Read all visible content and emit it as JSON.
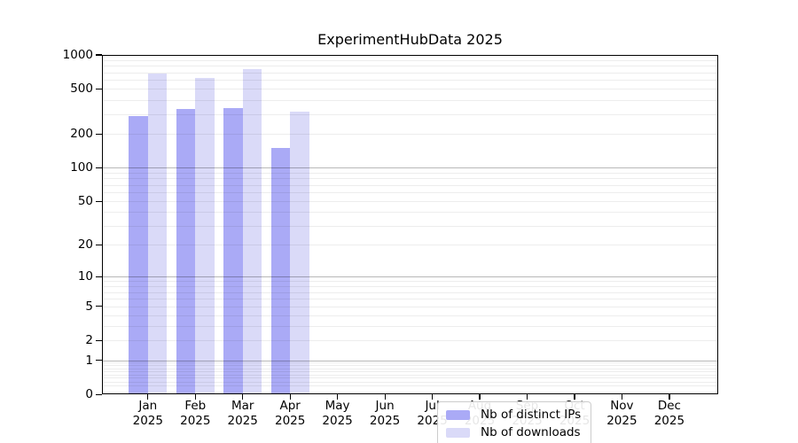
{
  "chart_data": {
    "type": "bar",
    "title": "ExperimentHubData 2025",
    "categories": [
      "Jan",
      "Feb",
      "Mar",
      "Apr",
      "May",
      "Jun",
      "Jul",
      "Aug",
      "Sep",
      "Oct",
      "Nov",
      "Dec"
    ],
    "year_label": "2025",
    "series": [
      {
        "name": "Nb of distinct IPs",
        "color": "#aaaaf6",
        "values": [
          285,
          330,
          340,
          150,
          0,
          0,
          0,
          0,
          0,
          0,
          0,
          0
        ]
      },
      {
        "name": "Nb of downloads",
        "color": "#dadaf8",
        "values": [
          680,
          620,
          755,
          315,
          0,
          0,
          0,
          0,
          0,
          0,
          0,
          0
        ]
      }
    ],
    "yscale": "log10(1+v)",
    "ylim": [
      0,
      1000
    ],
    "yticks": [
      0,
      1,
      2,
      5,
      10,
      20,
      50,
      100,
      200,
      500,
      1000
    ],
    "grid": {
      "major_values": [
        1,
        10,
        100
      ],
      "minor_decades": [
        0.1,
        1,
        10,
        100
      ],
      "minor_multipliers": [
        2,
        3,
        4,
        5,
        6,
        7,
        8,
        9
      ]
    },
    "legend": {
      "position": "inside-bottom-center"
    },
    "colors": {
      "background": "#ffffff",
      "spine": "#000000",
      "major_grid": "#b8b8b8",
      "minor_grid": "#ededed"
    }
  }
}
